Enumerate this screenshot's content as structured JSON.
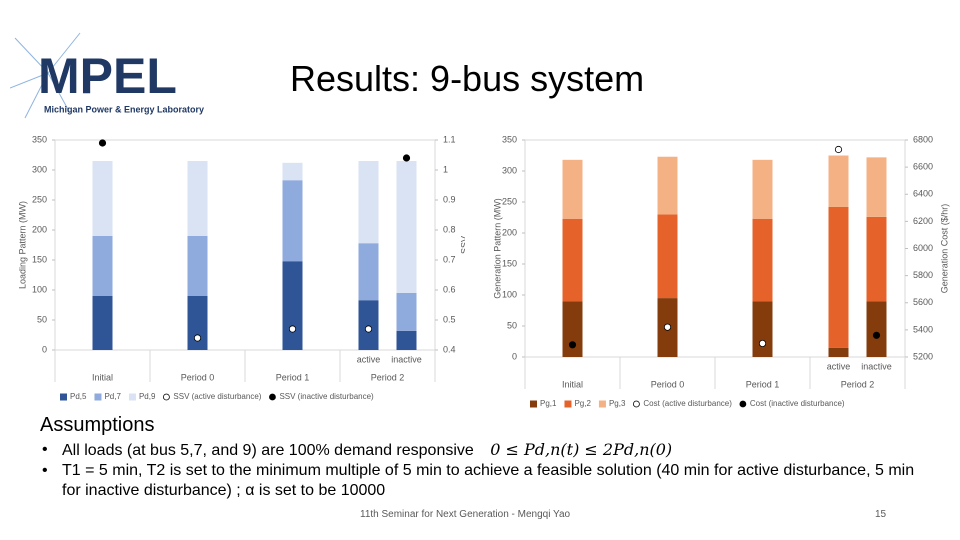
{
  "header": {
    "logo": "MPEL",
    "lab": "Michigan Power & Energy Laboratory",
    "title": "Results: 9-bus system"
  },
  "chart_data": [
    {
      "type": "bar",
      "categories": [
        "Initial",
        "Period 0",
        "Period 1",
        "active",
        "inactive"
      ],
      "category_group": "Period 2",
      "y_label": "Loading Pattern (MW)",
      "y2_label": "SSV",
      "ylim": [
        0,
        350
      ],
      "yticks": [
        0,
        50,
        100,
        150,
        200,
        250,
        300,
        350
      ],
      "y2lim": [
        0.4,
        1.1
      ],
      "y2ticks": [
        0.4,
        0.5,
        0.6,
        0.7,
        0.8,
        0.9,
        1,
        1.1
      ],
      "series": [
        {
          "name": "Pd,5",
          "color": "#2f5597",
          "values": [
            90,
            90,
            148,
            83,
            32
          ]
        },
        {
          "name": "Pd,7",
          "color": "#8faadc",
          "values": [
            100,
            100,
            135,
            95,
            63
          ]
        },
        {
          "name": "Pd,9",
          "color": "#dae3f3",
          "values": [
            125,
            125,
            29,
            137,
            220
          ]
        },
        {
          "name": "SSV (active disturbance)",
          "color": "#ffffff",
          "axis": "y2",
          "values": [
            null,
            0.44,
            0.47,
            0.47,
            null
          ]
        },
        {
          "name": "SSV (inactive disturbance)",
          "color": "#000000",
          "axis": "y2",
          "values": [
            1.09,
            null,
            null,
            null,
            1.04
          ]
        }
      ]
    },
    {
      "type": "bar",
      "categories": [
        "Initial",
        "Period 0",
        "Period 1",
        "active",
        "inactive"
      ],
      "category_group": "Period 2",
      "y_label": "Generation Pattern (MW)",
      "y2_label": "Generation Cost ($/hr)",
      "ylim": [
        0,
        350
      ],
      "yticks": [
        0,
        50,
        100,
        150,
        200,
        250,
        300,
        350
      ],
      "y2lim": [
        5200,
        6800
      ],
      "y2ticks": [
        5200,
        5400,
        5600,
        5800,
        6000,
        6200,
        6400,
        6600,
        6800
      ],
      "series": [
        {
          "name": "Pg,1",
          "color": "#843c0c",
          "values": [
            90,
            95,
            90,
            15,
            90
          ]
        },
        {
          "name": "Pg,2",
          "color": "#e5622a",
          "values": [
            133,
            135,
            133,
            227,
            136
          ]
        },
        {
          "name": "Pg,3",
          "color": "#f4b183",
          "values": [
            95,
            93,
            95,
            83,
            96
          ]
        },
        {
          "name": "Cost (active disturbance)",
          "color": "#ffffff",
          "axis": "y2",
          "values": [
            null,
            5420,
            5300,
            6730,
            null
          ]
        },
        {
          "name": "Cost (inactive disturbance)",
          "color": "#000000",
          "axis": "y2",
          "values": [
            5290,
            null,
            null,
            null,
            5360
          ]
        }
      ]
    }
  ],
  "assumptions": {
    "heading": "Assumptions",
    "bullets": [
      "All loads (at bus 5,7, and 9) are 100% demand responsive",
      "T1 = 5 min, T2 is set to the minimum multiple of 5 min to achieve a feasible solution (40 min for active disturbance, 5 min for inactive disturbance) ; α is set to be 10000"
    ],
    "formula": "0 ≤ Pd,n(t) ≤ 2Pd,n(0)"
  },
  "footer": {
    "text": "11th Seminar for Next Generation - Mengqi Yao",
    "page": "15"
  }
}
